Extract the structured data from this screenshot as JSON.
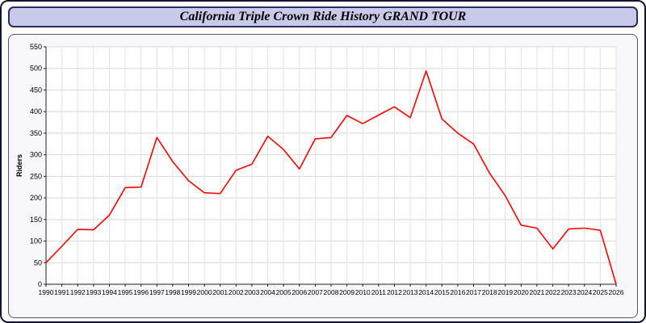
{
  "window": {
    "title": "California Triple Crown Ride History GRAND TOUR"
  },
  "chart_data": {
    "type": "line",
    "title": "California Triple Crown Ride History GRAND TOUR",
    "xlabel": "",
    "ylabel": "Riders",
    "x": [
      1990,
      1991,
      1992,
      1993,
      1994,
      1995,
      1996,
      1997,
      1998,
      1999,
      2000,
      2001,
      2002,
      2003,
      2004,
      2005,
      2006,
      2007,
      2008,
      2009,
      2010,
      2011,
      2012,
      2013,
      2014,
      2015,
      2016,
      2017,
      2018,
      2019,
      2020,
      2021,
      2022,
      2023,
      2024,
      2025,
      2026
    ],
    "series": [
      {
        "name": "Riders",
        "color": "#ff0000",
        "values": [
          50,
          88,
          127,
          126,
          160,
          224,
          225,
          340,
          284,
          240,
          212,
          210,
          264,
          278,
          343,
          312,
          267,
          337,
          340,
          391,
          372,
          392,
          411,
          386,
          494,
          383,
          350,
          325,
          258,
          205,
          137,
          130,
          82,
          128,
          130,
          125,
          0
        ]
      }
    ],
    "ylim": [
      0,
      550
    ],
    "ytick_step": 50,
    "grid": true,
    "legend": "none"
  },
  "colors": {
    "line": "#ff0000",
    "title_bar_bg": "#c9c9ea",
    "title_bar_border": "#2b2b66",
    "panel_bg": "#f7f7fc",
    "panel_border": "#555577",
    "grid_h": "#d8d8d8",
    "grid_v": "#e2e2e2",
    "axis": "#222222",
    "plot_bg": "#ffffff"
  }
}
